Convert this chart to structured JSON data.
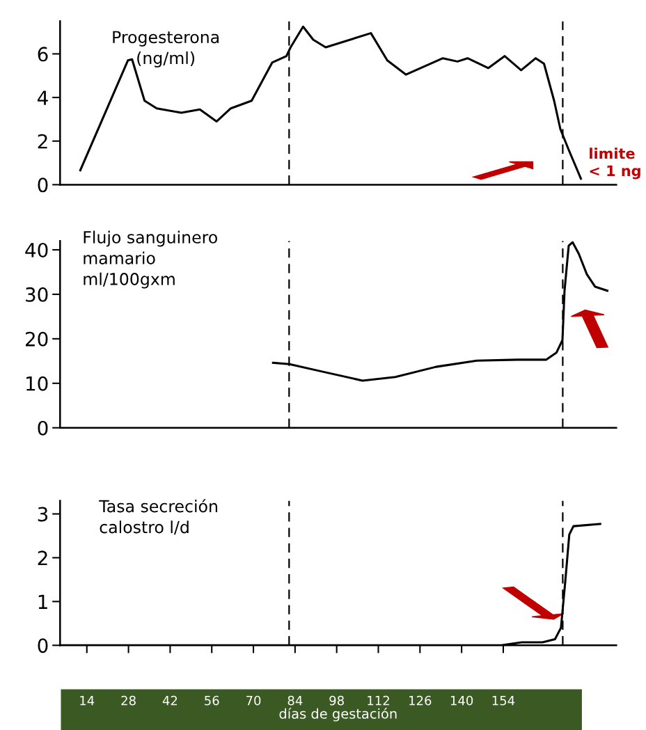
{
  "chart_data": [
    {
      "type": "line",
      "title": "Progesterona\n(ng/ml)",
      "annotations": [
        "limite\n< 1 ng"
      ],
      "xlim": [
        5,
        192
      ],
      "ylim": [
        0,
        7.5
      ],
      "yticks": [
        0,
        2,
        4,
        6
      ],
      "tick_labels": "y",
      "grid": false,
      "legend": false,
      "marker": "none",
      "line_style": "solid",
      "ref_lines": [
        {
          "axis": "x",
          "value": 82,
          "line_style": "dashed",
          "color": "#000000"
        },
        {
          "axis": "x",
          "value": 174,
          "line_style": "dashed",
          "color": "#000000"
        }
      ],
      "series": [
        {
          "color": "#000000",
          "x": [
            11.8,
            27.8,
            29.2,
            33.4,
            37.5,
            45.8,
            52.0,
            57.6,
            62.4,
            69.4,
            76.3,
            81.1,
            82.5,
            86.7,
            90.1,
            94.3,
            109.5,
            115.0,
            121.3,
            133.7,
            138.6,
            142.0,
            149.0,
            154.5,
            160.0,
            164.9,
            167.7,
            171.1,
            173.2,
            176.0,
            180.1
          ],
          "values": [
            0.66,
            5.7,
            5.75,
            3.85,
            3.5,
            3.3,
            3.45,
            2.9,
            3.5,
            3.85,
            5.6,
            5.9,
            6.3,
            7.25,
            6.65,
            6.3,
            6.95,
            5.7,
            5.05,
            5.8,
            5.65,
            5.8,
            5.35,
            5.9,
            5.25,
            5.8,
            5.55,
            3.85,
            2.55,
            1.6,
            0.28
          ]
        }
      ]
    },
    {
      "type": "line",
      "title": "Flujo sanguinero\nmamario\nml/100gxm",
      "xlim": [
        5,
        192
      ],
      "ylim": [
        0,
        42
      ],
      "yticks": [
        0,
        10,
        20,
        30,
        40
      ],
      "tick_labels": "y",
      "grid": false,
      "legend": false,
      "marker": "none",
      "line_style": "solid",
      "ref_lines": [
        {
          "axis": "x",
          "value": 82,
          "line_style": "dashed",
          "color": "#000000"
        },
        {
          "axis": "x",
          "value": 174,
          "line_style": "dashed",
          "color": "#000000"
        }
      ],
      "series": [
        {
          "color": "#000000",
          "x": [
            76.6,
            82.1,
            92.0,
            106.7,
            117.7,
            131.4,
            145.1,
            158.8,
            168.4,
            171.9,
            173.9,
            174.6,
            176.0,
            177.3,
            179.4,
            182.1,
            184.9,
            189.0
          ],
          "values": [
            14.6,
            14.3,
            12.8,
            10.6,
            11.4,
            13.7,
            15.1,
            15.3,
            15.3,
            16.9,
            19.7,
            30.8,
            40.9,
            41.7,
            39.1,
            34.5,
            31.7,
            30.8
          ]
        }
      ]
    },
    {
      "type": "line",
      "title": "Tasa secreción\ncalostro l/d",
      "xlabel": "días de gestación",
      "xlim": [
        5,
        192
      ],
      "ylim": [
        0,
        3.3
      ],
      "yticks": [
        0,
        1,
        2,
        3
      ],
      "xticks": [
        14,
        28,
        42,
        56,
        70,
        84,
        98,
        112,
        126,
        140,
        154
      ],
      "grid": false,
      "legend": false,
      "marker": "none",
      "line_style": "solid",
      "ref_lines": [
        {
          "axis": "x",
          "value": 82,
          "line_style": "dashed",
          "color": "#000000"
        },
        {
          "axis": "x",
          "value": 174,
          "line_style": "dashed",
          "color": "#000000"
        }
      ],
      "series": [
        {
          "color": "#000000",
          "x": [
            5,
            153.3,
            160.2,
            167.2,
            171.4,
            173.4,
            174.8,
            176.2,
            177.6,
            186.6
          ],
          "values": [
            0,
            0,
            0.07,
            0.07,
            0.14,
            0.4,
            1.42,
            2.53,
            2.72,
            2.77
          ]
        }
      ]
    }
  ]
}
